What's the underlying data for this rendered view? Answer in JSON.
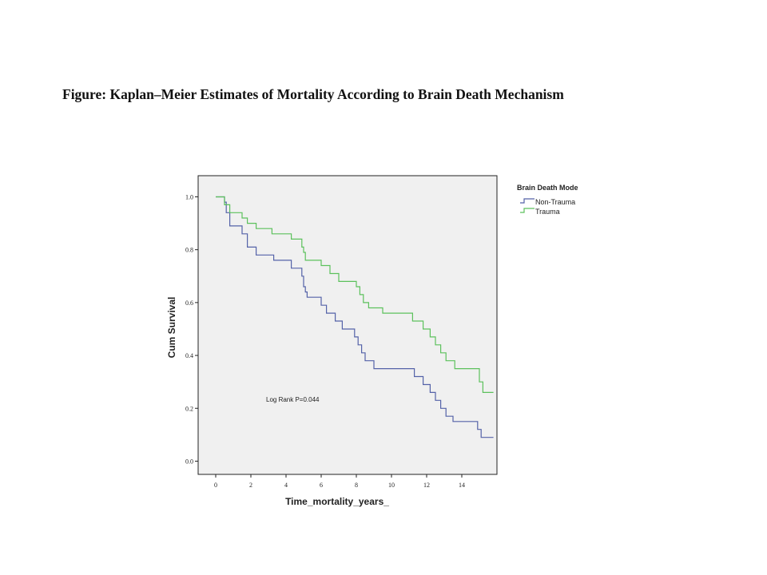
{
  "figure_title": "Figure: Kaplan–Meier Estimates of Mortality According to Brain Death Mechanism",
  "chart_data": {
    "type": "line",
    "subtype": "kaplan-meier step",
    "title": "",
    "xlabel": "Time_mortality_years_",
    "ylabel": "Cum Survival",
    "xlim": [
      -1,
      16
    ],
    "ylim": [
      -0.05,
      1.08
    ],
    "x_ticks": [
      0,
      2,
      4,
      6,
      8,
      10,
      12,
      14
    ],
    "y_ticks": [
      0.0,
      0.2,
      0.4,
      0.6,
      0.8,
      1.0
    ],
    "y_tick_labels": [
      "0.0",
      "0.2",
      "0.4",
      "0.6",
      "0.8",
      "1.0"
    ],
    "grid": false,
    "plot_background": "#f0f0f0",
    "legend": {
      "title": "Brain Death Mode",
      "placement": "right-outside"
    },
    "annotation": "Log Rank P=0.044",
    "series": [
      {
        "name": "Non-Trauma",
        "color": "#5462a8",
        "points": [
          [
            0,
            1.0
          ],
          [
            0.5,
            1.0
          ],
          [
            0.5,
            0.98
          ],
          [
            0.6,
            0.98
          ],
          [
            0.6,
            0.94
          ],
          [
            0.8,
            0.94
          ],
          [
            0.8,
            0.89
          ],
          [
            1.5,
            0.89
          ],
          [
            1.5,
            0.86
          ],
          [
            1.8,
            0.86
          ],
          [
            1.8,
            0.81
          ],
          [
            2.3,
            0.81
          ],
          [
            2.3,
            0.78
          ],
          [
            3.3,
            0.78
          ],
          [
            3.3,
            0.76
          ],
          [
            4.3,
            0.76
          ],
          [
            4.3,
            0.73
          ],
          [
            4.9,
            0.73
          ],
          [
            4.9,
            0.7
          ],
          [
            5.0,
            0.7
          ],
          [
            5.0,
            0.66
          ],
          [
            5.1,
            0.66
          ],
          [
            5.1,
            0.64
          ],
          [
            5.2,
            0.64
          ],
          [
            5.2,
            0.62
          ],
          [
            6.0,
            0.62
          ],
          [
            6.0,
            0.59
          ],
          [
            6.3,
            0.59
          ],
          [
            6.3,
            0.56
          ],
          [
            6.8,
            0.56
          ],
          [
            6.8,
            0.53
          ],
          [
            7.2,
            0.53
          ],
          [
            7.2,
            0.5
          ],
          [
            7.9,
            0.5
          ],
          [
            7.9,
            0.47
          ],
          [
            8.1,
            0.47
          ],
          [
            8.1,
            0.44
          ],
          [
            8.3,
            0.44
          ],
          [
            8.3,
            0.41
          ],
          [
            8.5,
            0.41
          ],
          [
            8.5,
            0.38
          ],
          [
            9.0,
            0.38
          ],
          [
            9.0,
            0.35
          ],
          [
            11.3,
            0.35
          ],
          [
            11.3,
            0.32
          ],
          [
            11.8,
            0.32
          ],
          [
            11.8,
            0.29
          ],
          [
            12.2,
            0.29
          ],
          [
            12.2,
            0.26
          ],
          [
            12.5,
            0.26
          ],
          [
            12.5,
            0.23
          ],
          [
            12.8,
            0.23
          ],
          [
            12.8,
            0.2
          ],
          [
            13.1,
            0.2
          ],
          [
            13.1,
            0.17
          ],
          [
            13.5,
            0.17
          ],
          [
            13.5,
            0.15
          ],
          [
            14.9,
            0.15
          ],
          [
            14.9,
            0.12
          ],
          [
            15.1,
            0.12
          ],
          [
            15.1,
            0.09
          ],
          [
            15.8,
            0.09
          ]
        ]
      },
      {
        "name": "Trauma",
        "color": "#5cc15c",
        "points": [
          [
            0,
            1.0
          ],
          [
            0.5,
            1.0
          ],
          [
            0.5,
            0.97
          ],
          [
            0.8,
            0.97
          ],
          [
            0.8,
            0.94
          ],
          [
            1.5,
            0.94
          ],
          [
            1.5,
            0.92
          ],
          [
            1.8,
            0.92
          ],
          [
            1.8,
            0.9
          ],
          [
            2.3,
            0.9
          ],
          [
            2.3,
            0.88
          ],
          [
            3.2,
            0.88
          ],
          [
            3.2,
            0.86
          ],
          [
            4.3,
            0.86
          ],
          [
            4.3,
            0.84
          ],
          [
            4.9,
            0.84
          ],
          [
            4.9,
            0.81
          ],
          [
            5.0,
            0.81
          ],
          [
            5.0,
            0.79
          ],
          [
            5.1,
            0.79
          ],
          [
            5.1,
            0.76
          ],
          [
            6.0,
            0.76
          ],
          [
            6.0,
            0.74
          ],
          [
            6.5,
            0.74
          ],
          [
            6.5,
            0.71
          ],
          [
            7.0,
            0.71
          ],
          [
            7.0,
            0.68
          ],
          [
            8.0,
            0.68
          ],
          [
            8.0,
            0.66
          ],
          [
            8.2,
            0.66
          ],
          [
            8.2,
            0.63
          ],
          [
            8.4,
            0.63
          ],
          [
            8.4,
            0.6
          ],
          [
            8.7,
            0.6
          ],
          [
            8.7,
            0.58
          ],
          [
            9.5,
            0.58
          ],
          [
            9.5,
            0.56
          ],
          [
            11.2,
            0.56
          ],
          [
            11.2,
            0.53
          ],
          [
            11.8,
            0.53
          ],
          [
            11.8,
            0.5
          ],
          [
            12.2,
            0.5
          ],
          [
            12.2,
            0.47
          ],
          [
            12.5,
            0.47
          ],
          [
            12.5,
            0.44
          ],
          [
            12.8,
            0.44
          ],
          [
            12.8,
            0.41
          ],
          [
            13.1,
            0.41
          ],
          [
            13.1,
            0.38
          ],
          [
            13.6,
            0.38
          ],
          [
            13.6,
            0.35
          ],
          [
            15.0,
            0.35
          ],
          [
            15.0,
            0.3
          ],
          [
            15.2,
            0.3
          ],
          [
            15.2,
            0.26
          ],
          [
            15.8,
            0.26
          ]
        ]
      }
    ]
  }
}
